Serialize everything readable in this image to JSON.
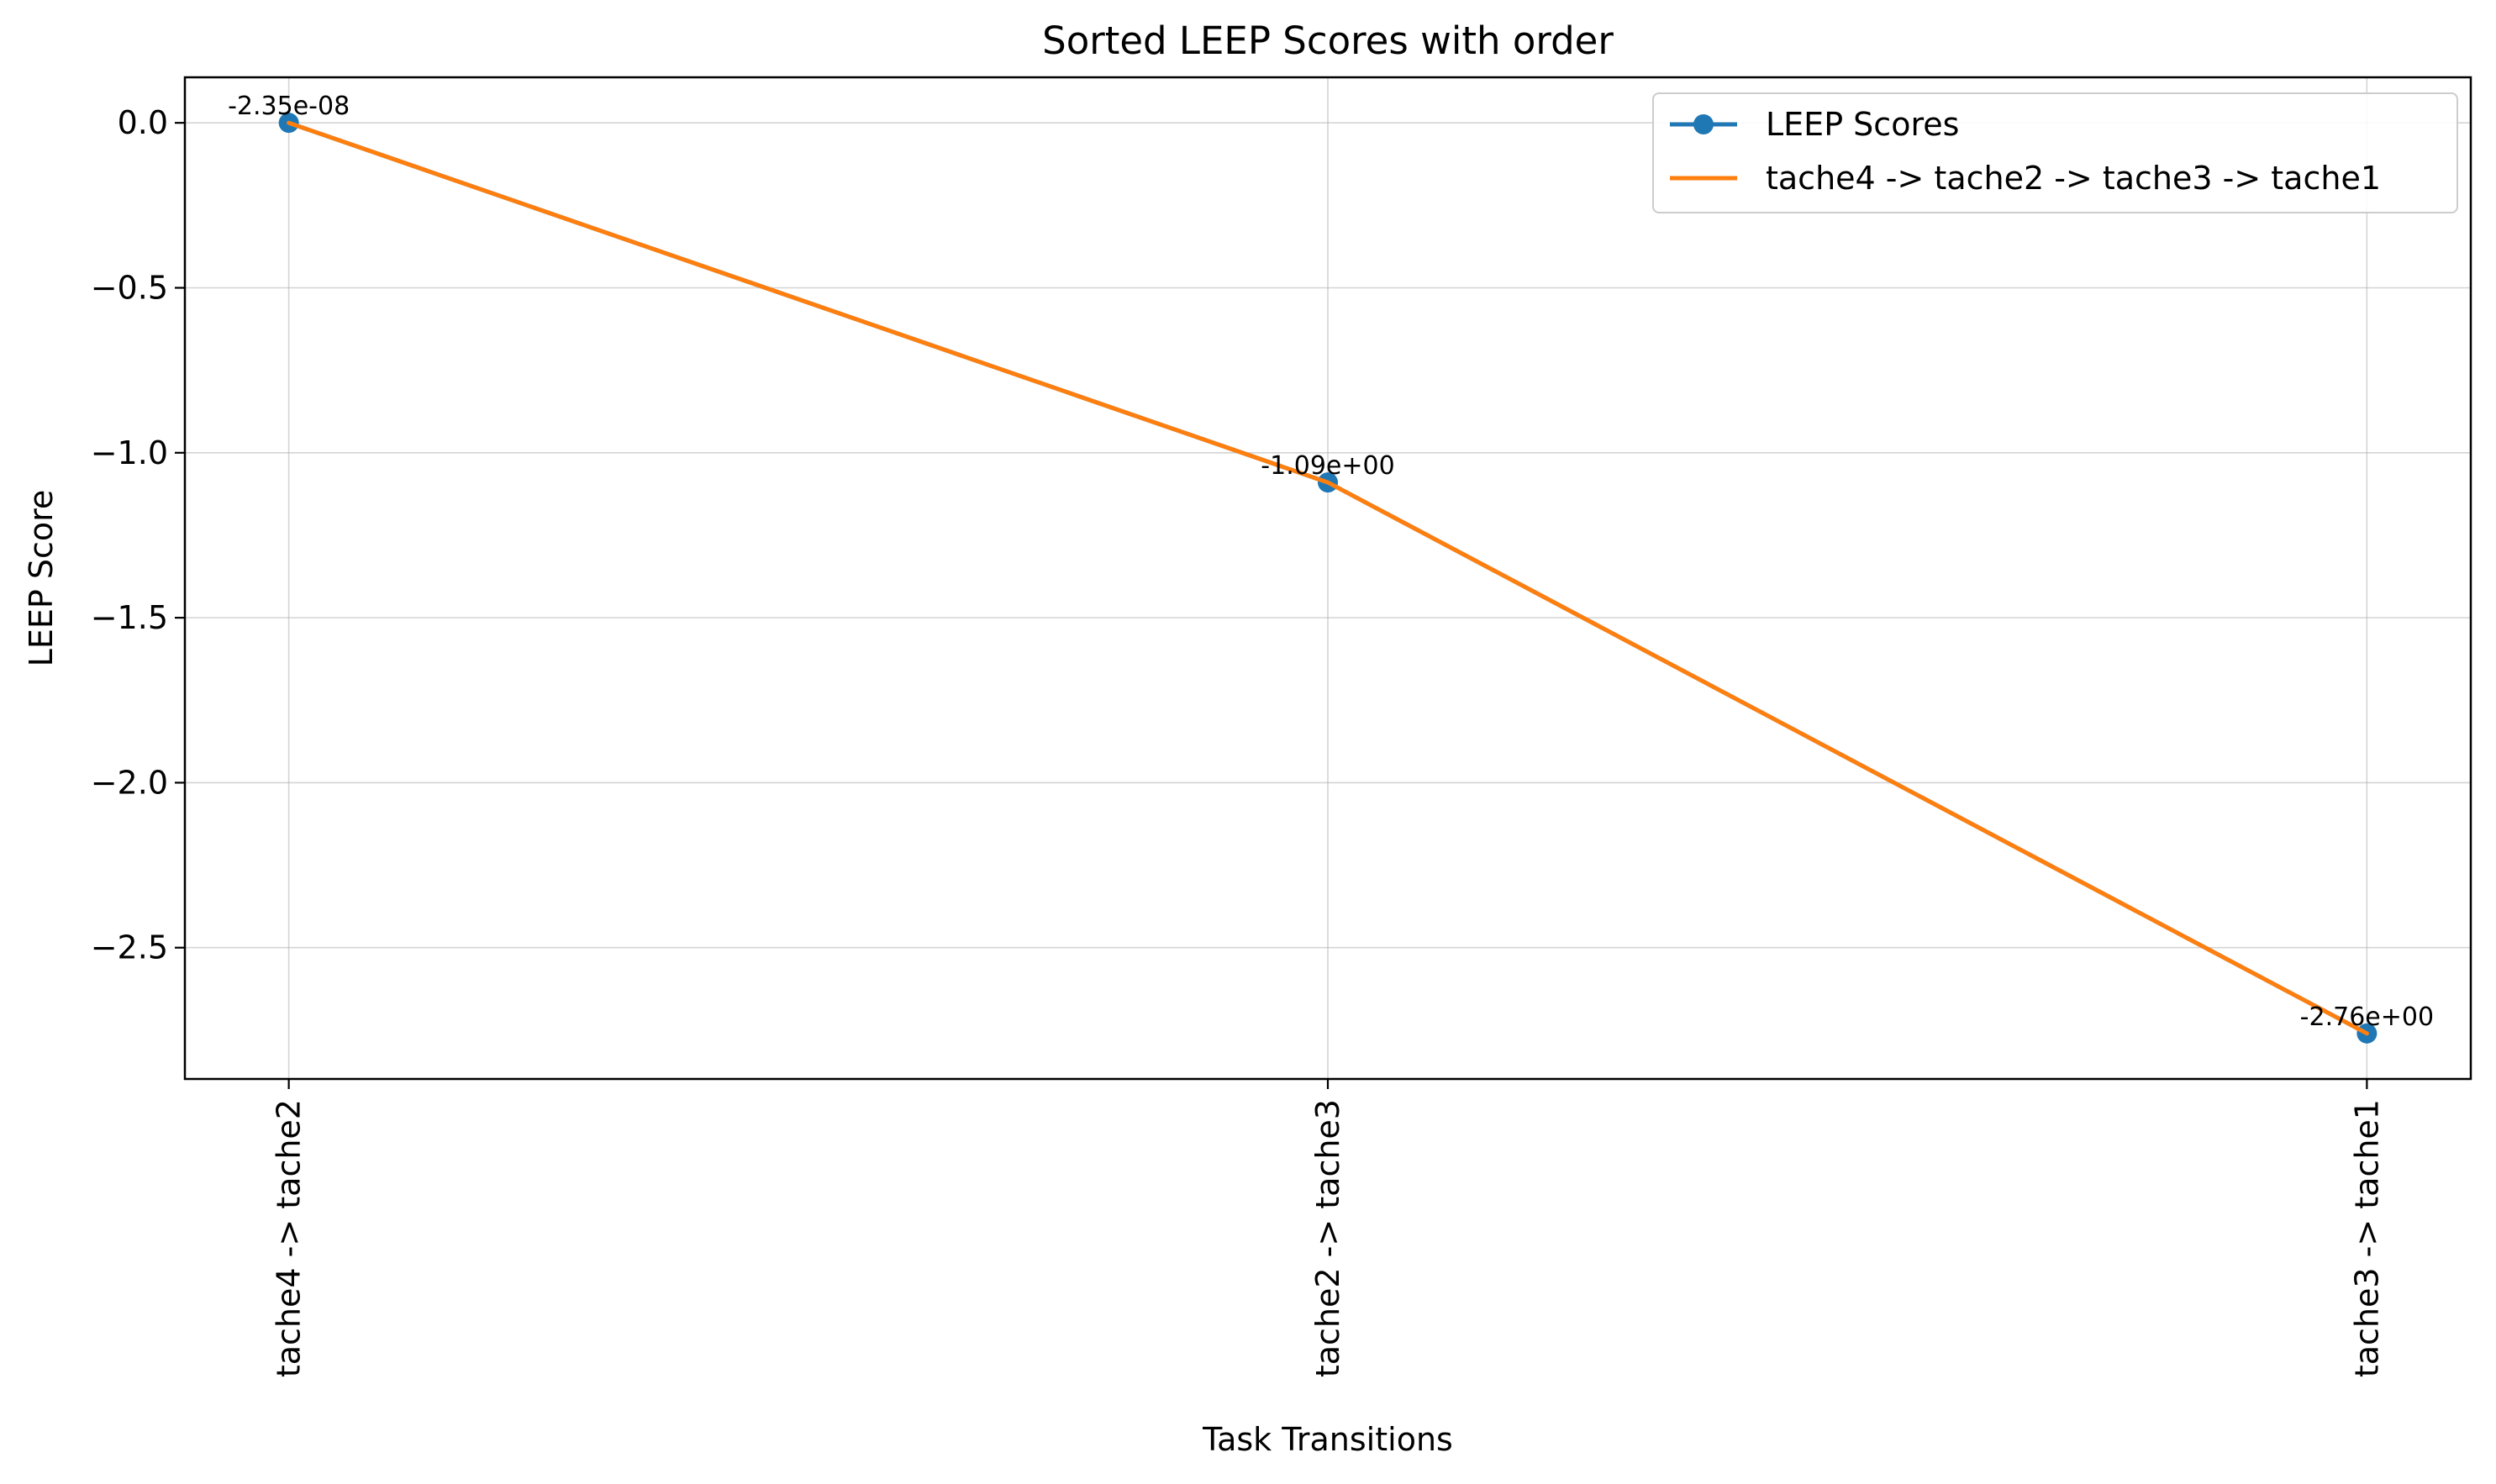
{
  "chart_data": {
    "type": "line",
    "title": "Sorted LEEP Scores with order",
    "xlabel": "Task Transitions",
    "ylabel": "LEEP Score",
    "categories": [
      "tache4 -> tache2",
      "tache2 -> tache3",
      "tache3 -> tache1"
    ],
    "series": [
      {
        "name": "LEEP Scores",
        "values": [
          -2.35e-08,
          -1.09,
          -2.76
        ],
        "color": "#1f77b4",
        "marker": "circle"
      },
      {
        "name": "tache4 -> tache2 -> tache3 -> tache1",
        "values": [
          -2.35e-08,
          -1.09,
          -2.76
        ],
        "color": "#ff7f0e",
        "marker": "none"
      }
    ],
    "data_labels": [
      "-2.35e-08",
      "-1.09e+00",
      "-2.76e+00"
    ],
    "y_ticks": [
      0.0,
      -0.5,
      -1.0,
      -1.5,
      -2.0,
      -2.5
    ],
    "y_tick_labels": [
      "0.0",
      "−0.5",
      "−1.0",
      "−1.5",
      "−2.0",
      "−2.5"
    ],
    "ylim": [
      -2.898,
      0.138
    ],
    "grid": true,
    "legend_position": "top-right"
  }
}
